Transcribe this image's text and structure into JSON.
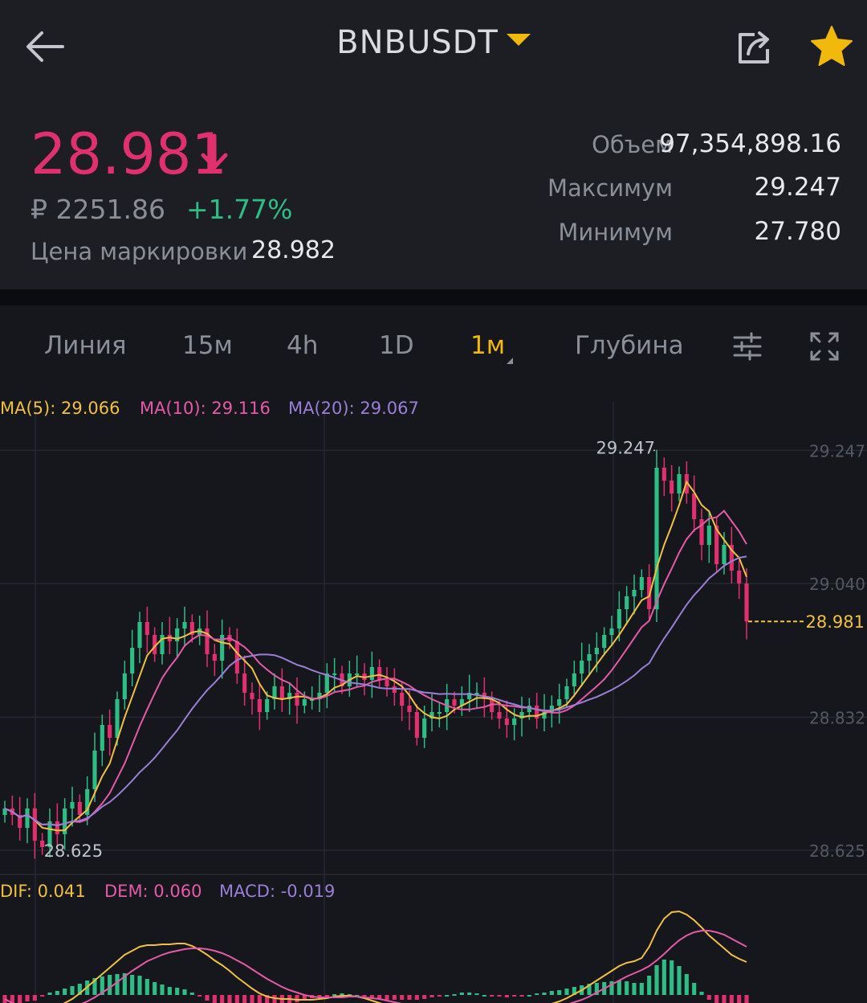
{
  "header": {
    "symbol": "BNBUSDT",
    "icons": [
      "back-arrow-icon",
      "dropdown-caret-icon",
      "share-icon",
      "star-icon"
    ],
    "star_color": "#f0b90b"
  },
  "ticker": {
    "last_price": "28.981",
    "fiat_value": "₽ 2251.86",
    "change_percent": "+1.77%",
    "mark_price_label": "Цена маркировки",
    "mark_price": "28.982",
    "volume_label": "Объем",
    "volume": "97,354,898.16",
    "high_label": "Максимум",
    "high": "29.247",
    "low_label": "Минимум",
    "low": "27.780",
    "colors": {
      "down": "#e0316e",
      "up": "#2ebd85"
    }
  },
  "tabs": {
    "line": "Линия",
    "m15": "15м",
    "h4": "4h",
    "d1": "1D",
    "m1": "1м",
    "depth": "Глубина",
    "active": "1м"
  },
  "indicators": {
    "ma5": "MA(5): 29.066",
    "ma10": "MA(10): 29.116",
    "ma20": "MA(20): 29.067",
    "dif": "DIF: 0.041",
    "dem": "DEM: 0.060",
    "macd": "MACD: -0.019"
  },
  "chart_data": {
    "type": "candlestick",
    "interval": "1м",
    "y_axis_ticks": [
      "29.247",
      "29.040",
      "28.832",
      "28.625"
    ],
    "ylim": [
      28.61,
      29.26
    ],
    "current_price_label": "28.981",
    "high_marker": "29.247",
    "low_marker": "28.625",
    "colors": {
      "up": "#2ebd85",
      "down": "#e0316e",
      "ma5": "#f0c040",
      "ma10": "#e55aa8",
      "ma20": "#9b7ed6"
    },
    "closes": [
      28.69,
      28.68,
      28.66,
      28.69,
      28.64,
      28.63,
      28.67,
      28.65,
      28.69,
      28.7,
      28.68,
      28.72,
      28.78,
      28.82,
      28.8,
      28.86,
      28.9,
      28.94,
      28.98,
      28.96,
      28.93,
      28.96,
      28.95,
      28.97,
      28.98,
      28.96,
      28.97,
      28.93,
      28.92,
      28.96,
      28.95,
      28.9,
      28.87,
      28.86,
      28.84,
      28.86,
      28.88,
      28.86,
      28.87,
      28.85,
      28.86,
      28.86,
      28.87,
      28.9,
      28.9,
      28.88,
      28.9,
      28.9,
      28.89,
      28.91,
      28.89,
      28.88,
      28.87,
      28.85,
      28.84,
      28.8,
      28.83,
      28.84,
      28.84,
      28.86,
      28.85,
      28.86,
      28.87,
      28.87,
      28.86,
      28.84,
      28.83,
      28.82,
      28.83,
      28.84,
      28.85,
      28.83,
      28.84,
      28.85,
      28.86,
      28.88,
      28.9,
      28.92,
      28.93,
      28.94,
      28.96,
      28.97,
      29.0,
      29.02,
      29.03,
      29.05,
      29.0,
      29.22,
      29.2,
      29.18,
      29.21,
      29.18,
      29.14,
      29.1,
      29.13,
      29.07,
      29.1,
      29.06,
      29.04,
      28.981
    ],
    "dif": [
      -0.02,
      -0.025,
      -0.028,
      -0.026,
      -0.027,
      -0.022,
      -0.018,
      -0.015,
      -0.01,
      -0.005,
      0.002,
      0.01,
      0.018,
      0.026,
      0.034,
      0.042,
      0.05,
      0.055,
      0.06,
      0.062,
      0.062,
      0.063,
      0.063,
      0.064,
      0.064,
      0.061,
      0.056,
      0.05,
      0.043,
      0.037,
      0.03,
      0.022,
      0.015,
      0.008,
      0.002,
      -0.002,
      -0.004,
      -0.005,
      -0.005,
      -0.006,
      -0.006,
      -0.006,
      -0.005,
      -0.004,
      -0.002,
      -0.001,
      -0.001,
      -0.002,
      -0.004,
      -0.007,
      -0.01,
      -0.013,
      -0.015,
      -0.017,
      -0.019,
      -0.021,
      -0.022,
      -0.021,
      -0.02,
      -0.018,
      -0.017,
      -0.015,
      -0.014,
      -0.014,
      -0.016,
      -0.017,
      -0.019,
      -0.02,
      -0.02,
      -0.019,
      -0.018,
      -0.016,
      -0.014,
      -0.011,
      -0.008,
      -0.004,
      0.001,
      0.006,
      0.012,
      0.018,
      0.024,
      0.03,
      0.036,
      0.04,
      0.042,
      0.046,
      0.06,
      0.08,
      0.095,
      0.103,
      0.104,
      0.1,
      0.093,
      0.084,
      0.074,
      0.066,
      0.058,
      0.05,
      0.045,
      0.041
    ],
    "dem": [
      -0.005,
      -0.01,
      -0.015,
      -0.018,
      -0.02,
      -0.021,
      -0.021,
      -0.02,
      -0.018,
      -0.016,
      -0.012,
      -0.008,
      -0.003,
      0.003,
      0.009,
      0.016,
      0.023,
      0.03,
      0.036,
      0.042,
      0.046,
      0.05,
      0.053,
      0.055,
      0.057,
      0.058,
      0.058,
      0.057,
      0.055,
      0.052,
      0.048,
      0.043,
      0.038,
      0.032,
      0.026,
      0.02,
      0.015,
      0.01,
      0.006,
      0.003,
      0.0,
      -0.002,
      -0.003,
      -0.003,
      -0.003,
      -0.003,
      -0.002,
      -0.002,
      -0.003,
      -0.004,
      -0.005,
      -0.007,
      -0.009,
      -0.011,
      -0.013,
      -0.015,
      -0.017,
      -0.018,
      -0.018,
      -0.018,
      -0.018,
      -0.018,
      -0.017,
      -0.016,
      -0.016,
      -0.016,
      -0.017,
      -0.017,
      -0.018,
      -0.018,
      -0.018,
      -0.018,
      -0.017,
      -0.016,
      -0.014,
      -0.012,
      -0.009,
      -0.006,
      -0.002,
      0.003,
      0.008,
      0.013,
      0.018,
      0.023,
      0.027,
      0.031,
      0.036,
      0.043,
      0.051,
      0.06,
      0.068,
      0.074,
      0.078,
      0.08,
      0.08,
      0.078,
      0.075,
      0.07,
      0.065,
      0.06
    ]
  }
}
